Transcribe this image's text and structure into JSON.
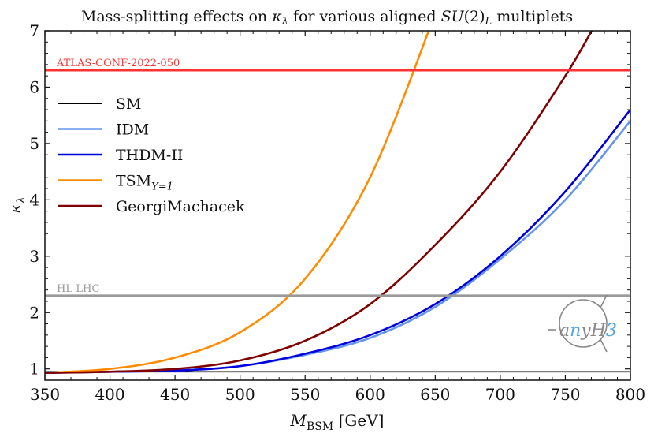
{
  "chart_data": {
    "type": "line",
    "title": "Mass-splitting effects on κ_λ for various aligned SU(2)_L multiplets",
    "xlabel": "M_BSM [GeV]",
    "ylabel": "κ_λ",
    "xlim": [
      350,
      800
    ],
    "ylim": [
      0.8,
      7
    ],
    "xticks": [
      350,
      400,
      450,
      500,
      550,
      600,
      650,
      700,
      750,
      800
    ],
    "yticks": [
      1,
      2,
      3,
      4,
      5,
      6,
      7
    ],
    "grid": false,
    "legend_placement": "upper-left",
    "series": [
      {
        "name": "SM",
        "color": "#000000",
        "x": [
          350,
          800
        ],
        "y": [
          0.95,
          0.95
        ]
      },
      {
        "name": "IDM",
        "color": "#6495ed",
        "x": [
          350,
          400,
          450,
          500,
          550,
          600,
          650,
          700,
          750,
          800
        ],
        "y": [
          0.93,
          0.95,
          0.97,
          1.05,
          1.25,
          1.55,
          2.1,
          2.95,
          4.0,
          5.4
        ]
      },
      {
        "name": "THDM-II",
        "color": "#0000dd",
        "x": [
          350,
          400,
          450,
          500,
          550,
          600,
          650,
          700,
          750,
          800
        ],
        "y": [
          0.93,
          0.95,
          0.97,
          1.05,
          1.27,
          1.6,
          2.15,
          3.0,
          4.15,
          5.6
        ]
      },
      {
        "name": "TSM_{Y=1}",
        "color": "#ff8c00",
        "x": [
          350,
          400,
          450,
          500,
          550,
          600,
          650
        ],
        "y": [
          0.93,
          1.0,
          1.2,
          1.65,
          2.6,
          4.4,
          7.3
        ]
      },
      {
        "name": "GeorgiMachacek",
        "color": "#800000",
        "x": [
          350,
          400,
          450,
          500,
          550,
          600,
          650,
          700,
          750,
          775
        ],
        "y": [
          0.93,
          0.95,
          1.0,
          1.15,
          1.5,
          2.15,
          3.2,
          4.5,
          6.2,
          7.2
        ]
      }
    ],
    "hlines": [
      {
        "label": "ATLAS-CONF-2022-050",
        "y": 6.3,
        "color": "#ff3333"
      },
      {
        "label": "HL-LHC",
        "y": 2.3,
        "color": "#999999"
      }
    ],
    "logo_text": "anyH3"
  }
}
